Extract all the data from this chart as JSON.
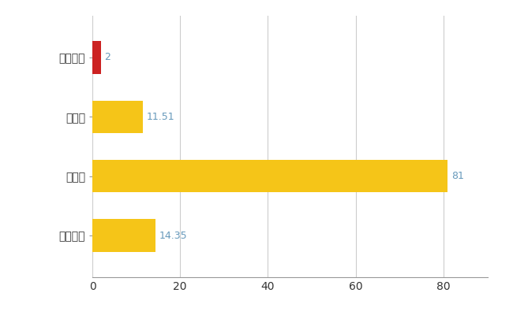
{
  "categories": [
    "千代田町",
    "県平均",
    "県最大",
    "全国平均"
  ],
  "values": [
    2,
    11.51,
    81,
    14.35
  ],
  "bar_colors": [
    "#cc2222",
    "#f5c518",
    "#f5c518",
    "#f5c518"
  ],
  "label_texts": [
    "2",
    "11.51",
    "81",
    "14.35"
  ],
  "xlim": [
    0,
    90
  ],
  "xticks": [
    0,
    20,
    40,
    60,
    80
  ],
  "background_color": "#ffffff",
  "grid_color": "#cccccc",
  "bar_height": 0.55,
  "label_color": "#6699bb",
  "tick_label_color": "#333333",
  "figsize": [
    6.5,
    4.0
  ],
  "dpi": 100
}
